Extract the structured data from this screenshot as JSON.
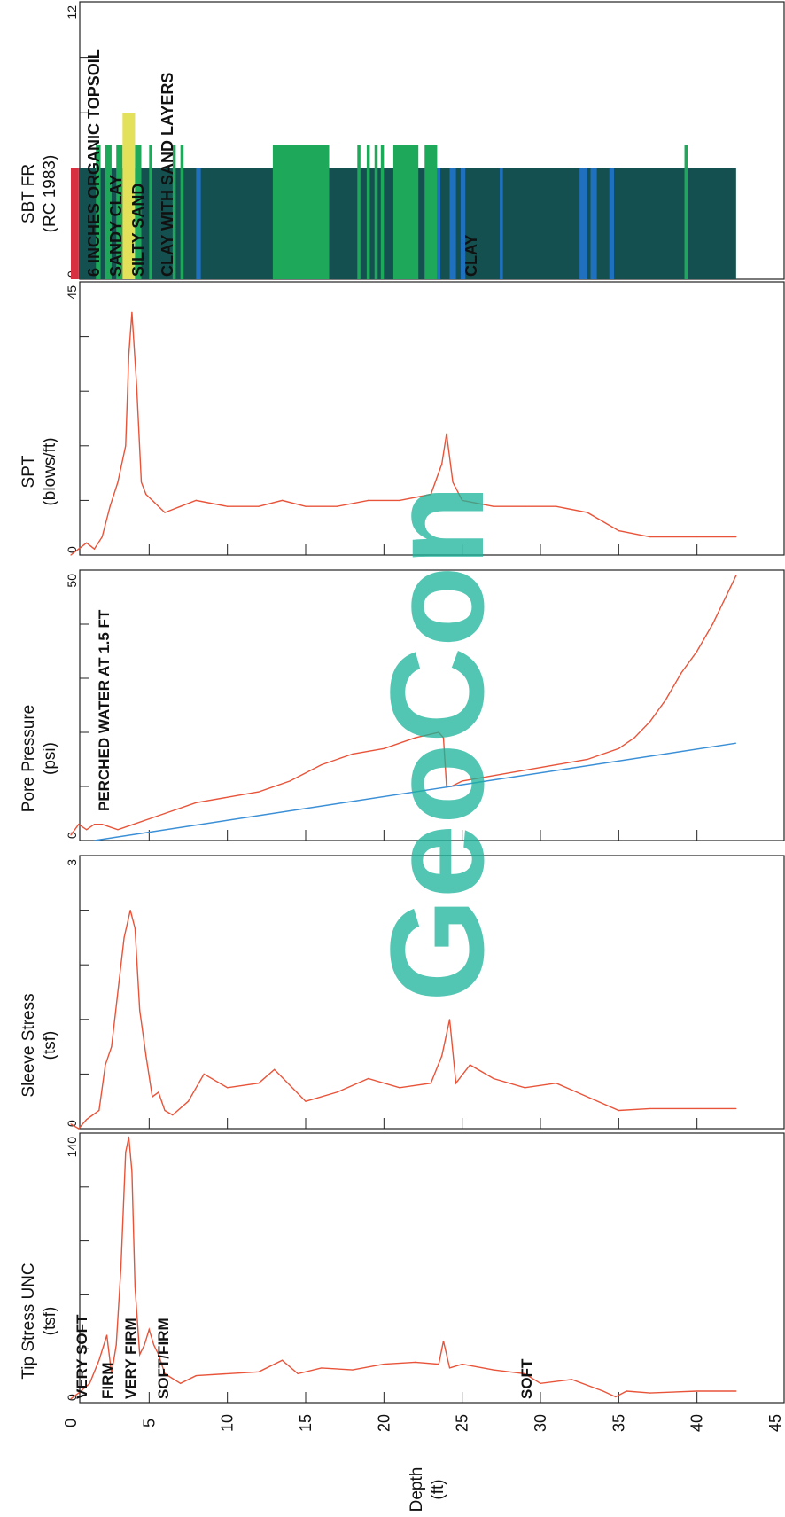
{
  "page": {
    "orientation_note": ""
  },
  "depth_axis": {
    "label_line1": "Depth",
    "label_line2": "(ft)",
    "ticks": [
      0,
      5,
      10,
      15,
      20,
      25,
      30,
      35,
      40,
      45
    ],
    "range": [
      0,
      45
    ]
  },
  "watermark": {
    "text": "GeoCon",
    "color": "#1ab39a"
  },
  "colors": {
    "trace": "#e8543a",
    "hydrostatic": "#3a8fd6",
    "sbt_dark": "#14504f",
    "sbt_green": "#1ea85a",
    "sbt_blue": "#2070c0",
    "sbt_yellow": "#e3e05a",
    "sbt_red": "#d83040"
  },
  "chart_data": [
    {
      "type": "line",
      "panel": "tip",
      "title_line1": "Tip Stress UNC",
      "title_line2": "(tsf)",
      "xlim": [
        0,
        140
      ],
      "tick_labels": [
        "0",
        "140"
      ],
      "depth": [
        0,
        0.5,
        1.2,
        1.8,
        2.3,
        2.6,
        2.9,
        3.2,
        3.5,
        3.7,
        3.9,
        4.1,
        4.4,
        4.7,
        5.0,
        5.3,
        5.6,
        6.0,
        7.0,
        8.0,
        10.0,
        12.0,
        13.5,
        14.5,
        16.0,
        18.0,
        20.0,
        22.0,
        23.5,
        23.8,
        24.2,
        25.0,
        27.0,
        29.0,
        30.0,
        32.0,
        34.0,
        34.8,
        35.5,
        37.0,
        40.0,
        42.5
      ],
      "values": [
        2,
        5,
        10,
        22,
        35,
        15,
        30,
        70,
        130,
        138,
        120,
        60,
        25,
        30,
        38,
        30,
        25,
        15,
        10,
        14,
        15,
        16,
        22,
        15,
        18,
        17,
        20,
        21,
        20,
        32,
        18,
        20,
        17,
        15,
        10,
        12,
        6,
        3,
        6,
        5,
        6,
        6
      ]
    },
    {
      "type": "line",
      "panel": "sleeve",
      "title_line1": "Sleeve Stress",
      "title_line2": "(tsf)",
      "xlim": [
        0,
        3
      ],
      "tick_labels": [
        "0",
        "3"
      ],
      "depth": [
        0,
        0.5,
        1.0,
        1.8,
        2.2,
        2.6,
        3.0,
        3.4,
        3.8,
        4.1,
        4.4,
        4.8,
        5.2,
        5.6,
        6.0,
        6.5,
        7.5,
        8.5,
        10.0,
        12.0,
        13.0,
        15.0,
        17.0,
        19.0,
        21.0,
        23.0,
        23.7,
        24.2,
        24.6,
        25.5,
        27.0,
        29.0,
        31.0,
        33.0,
        35.0,
        37.0,
        40.0,
        42.5
      ],
      "values": [
        0.05,
        0.0,
        0.1,
        0.2,
        0.7,
        0.9,
        1.5,
        2.1,
        2.4,
        2.2,
        1.3,
        0.8,
        0.35,
        0.4,
        0.2,
        0.15,
        0.3,
        0.6,
        0.45,
        0.5,
        0.65,
        0.3,
        0.4,
        0.55,
        0.45,
        0.5,
        0.8,
        1.2,
        0.5,
        0.7,
        0.55,
        0.45,
        0.5,
        0.35,
        0.2,
        0.22,
        0.22,
        0.22
      ]
    },
    {
      "type": "line",
      "panel": "pore",
      "title_line1": "Pore Pressure",
      "title_line2": "(psi)",
      "annotation": "PERCHED WATER AT 1.5 FT",
      "xlim": [
        0,
        50
      ],
      "tick_labels": [
        "0",
        "50"
      ],
      "depth": [
        0,
        0.5,
        1.0,
        1.5,
        2.0,
        3.0,
        4.0,
        5.0,
        6.0,
        8.0,
        10.0,
        12.0,
        14.0,
        16.0,
        18.0,
        20.0,
        22.0,
        23.5,
        23.8,
        24.0,
        24.3,
        25.0,
        27.0,
        29.0,
        31.0,
        33.0,
        35.0,
        36.0,
        37.0,
        38.0,
        39.0,
        40.0,
        41.0,
        42.0,
        42.5
      ],
      "values": [
        1,
        3,
        2,
        3,
        3,
        2,
        3,
        4,
        5,
        7,
        8,
        9,
        11,
        14,
        16,
        17,
        19,
        20,
        19,
        10,
        10,
        11,
        12,
        13,
        14,
        15,
        17,
        19,
        22,
        26,
        31,
        35,
        40,
        46,
        49
      ],
      "series_hydrostatic": {
        "depth": [
          1.5,
          42.5
        ],
        "values": [
          0,
          18
        ]
      }
    },
    {
      "type": "line",
      "panel": "spt",
      "title_line1": "SPT",
      "title_line2": "(blows/ft)",
      "xlim": [
        0,
        45
      ],
      "tick_labels": [
        "0",
        "45"
      ],
      "depth": [
        0,
        0.5,
        1.0,
        1.5,
        2.0,
        2.5,
        3.0,
        3.5,
        3.7,
        3.9,
        4.2,
        4.5,
        4.8,
        5.2,
        6.0,
        7.0,
        8.0,
        10.0,
        12.0,
        13.5,
        15.0,
        17.0,
        19.0,
        21.0,
        23.0,
        23.7,
        24.0,
        24.4,
        25.0,
        27.0,
        29.0,
        31.0,
        33.0,
        35.0,
        37.0,
        40.0,
        42.5
      ],
      "values": [
        0,
        1,
        2,
        1,
        3,
        8,
        12,
        18,
        33,
        40,
        28,
        12,
        10,
        9,
        7,
        8,
        9,
        8,
        8,
        9,
        8,
        8,
        9,
        9,
        10,
        15,
        20,
        12,
        9,
        8,
        8,
        8,
        7,
        4,
        3,
        3,
        3
      ]
    },
    {
      "type": "bar",
      "panel": "sbt",
      "title_line1": "SBT FR",
      "title_line2": "(RC 1983)",
      "xlim": [
        0,
        12
      ],
      "tick_labels": [
        "0",
        "12"
      ],
      "annotations": [
        "6 INCHES ORGANIC TOPSOIL",
        "SANDY CLAY",
        "SILTY SAND",
        "CLAY WITH SAND LAYERS",
        "CLAY"
      ],
      "base_zone": {
        "from": 0.5,
        "to": 42.5,
        "zone": 3,
        "type": "dark"
      },
      "bands": [
        {
          "from": 0,
          "to": 0.5,
          "zone": 3,
          "type": "red"
        },
        {
          "from": 1.6,
          "to": 1.9,
          "zone": 5,
          "type": "green"
        },
        {
          "from": 2.2,
          "to": 2.6,
          "zone": 5,
          "type": "green"
        },
        {
          "from": 2.9,
          "to": 3.3,
          "zone": 5,
          "type": "green"
        },
        {
          "from": 3.3,
          "to": 4.1,
          "zone": 6,
          "type": "yellow"
        },
        {
          "from": 4.1,
          "to": 4.5,
          "zone": 6,
          "type": "green"
        },
        {
          "from": 5.0,
          "to": 5.2,
          "zone": 5,
          "type": "green"
        },
        {
          "from": 6.5,
          "to": 6.7,
          "zone": 5,
          "type": "green"
        },
        {
          "from": 7.0,
          "to": 7.2,
          "zone": 5,
          "type": "green"
        },
        {
          "from": 8.0,
          "to": 8.3,
          "zone": 2,
          "type": "blue"
        },
        {
          "from": 12.9,
          "to": 16.5,
          "zone": 5,
          "type": "green"
        },
        {
          "from": 18.3,
          "to": 18.5,
          "zone": 5,
          "type": "green"
        },
        {
          "from": 18.9,
          "to": 19.1,
          "zone": 5,
          "type": "green"
        },
        {
          "from": 19.4,
          "to": 19.6,
          "zone": 5,
          "type": "green"
        },
        {
          "from": 19.8,
          "to": 20.0,
          "zone": 5,
          "type": "green"
        },
        {
          "from": 20.6,
          "to": 22.2,
          "zone": 5,
          "type": "green"
        },
        {
          "from": 22.6,
          "to": 23.4,
          "zone": 5,
          "type": "green"
        },
        {
          "from": 23.4,
          "to": 23.6,
          "zone": 2,
          "type": "blue"
        },
        {
          "from": 24.2,
          "to": 24.6,
          "zone": 2,
          "type": "blue"
        },
        {
          "from": 24.9,
          "to": 25.2,
          "zone": 2,
          "type": "blue"
        },
        {
          "from": 27.4,
          "to": 27.6,
          "zone": 2,
          "type": "blue"
        },
        {
          "from": 32.5,
          "to": 33.0,
          "zone": 2,
          "type": "blue"
        },
        {
          "from": 33.2,
          "to": 33.6,
          "zone": 2,
          "type": "blue"
        },
        {
          "from": 34.4,
          "to": 34.7,
          "zone": 2,
          "type": "blue"
        },
        {
          "from": 39.2,
          "to": 39.4,
          "zone": 5,
          "type": "green"
        }
      ]
    }
  ],
  "tip_labels": [
    "VERY SOFT",
    "FIRM",
    "VERY FIRM",
    "SOFT/FIRM",
    "SOFT"
  ]
}
